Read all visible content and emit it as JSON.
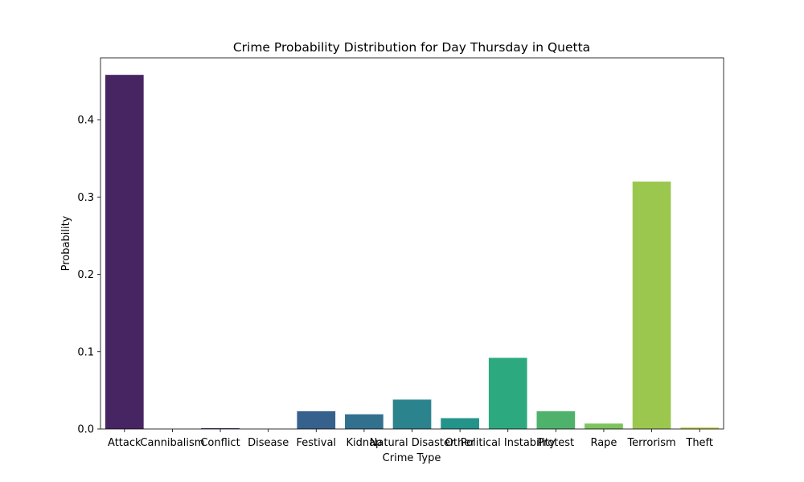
{
  "chart_data": {
    "type": "bar",
    "title": "Crime Probability Distribution for Day Thursday in Quetta",
    "xlabel": "Crime Type",
    "ylabel": "Probability",
    "ylim": [
      0,
      0.48
    ],
    "yticks": [
      0.0,
      0.1,
      0.2,
      0.3,
      0.4
    ],
    "ytick_labels": [
      "0.0",
      "0.1",
      "0.2",
      "0.3",
      "0.4"
    ],
    "grid": false,
    "categories": [
      "Attack",
      "Cannibalism",
      "Conflict",
      "Disease",
      "Festival",
      "Kidnap",
      "Natural Disaster",
      "Other",
      "Political Instability",
      "Protest",
      "Rape",
      "Terrorism",
      "Theft"
    ],
    "values": [
      0.458,
      0.0,
      0.001,
      0.0,
      0.023,
      0.019,
      0.038,
      0.014,
      0.092,
      0.023,
      0.007,
      0.32,
      0.002
    ],
    "colors": [
      "#472462",
      "#462e73",
      "#433d81",
      "#3d4c8b",
      "#37618d",
      "#31718e",
      "#2b838e",
      "#24948a",
      "#2ca97f",
      "#4fb26c",
      "#7cc45d",
      "#9cc74f",
      "#c9d645"
    ]
  }
}
